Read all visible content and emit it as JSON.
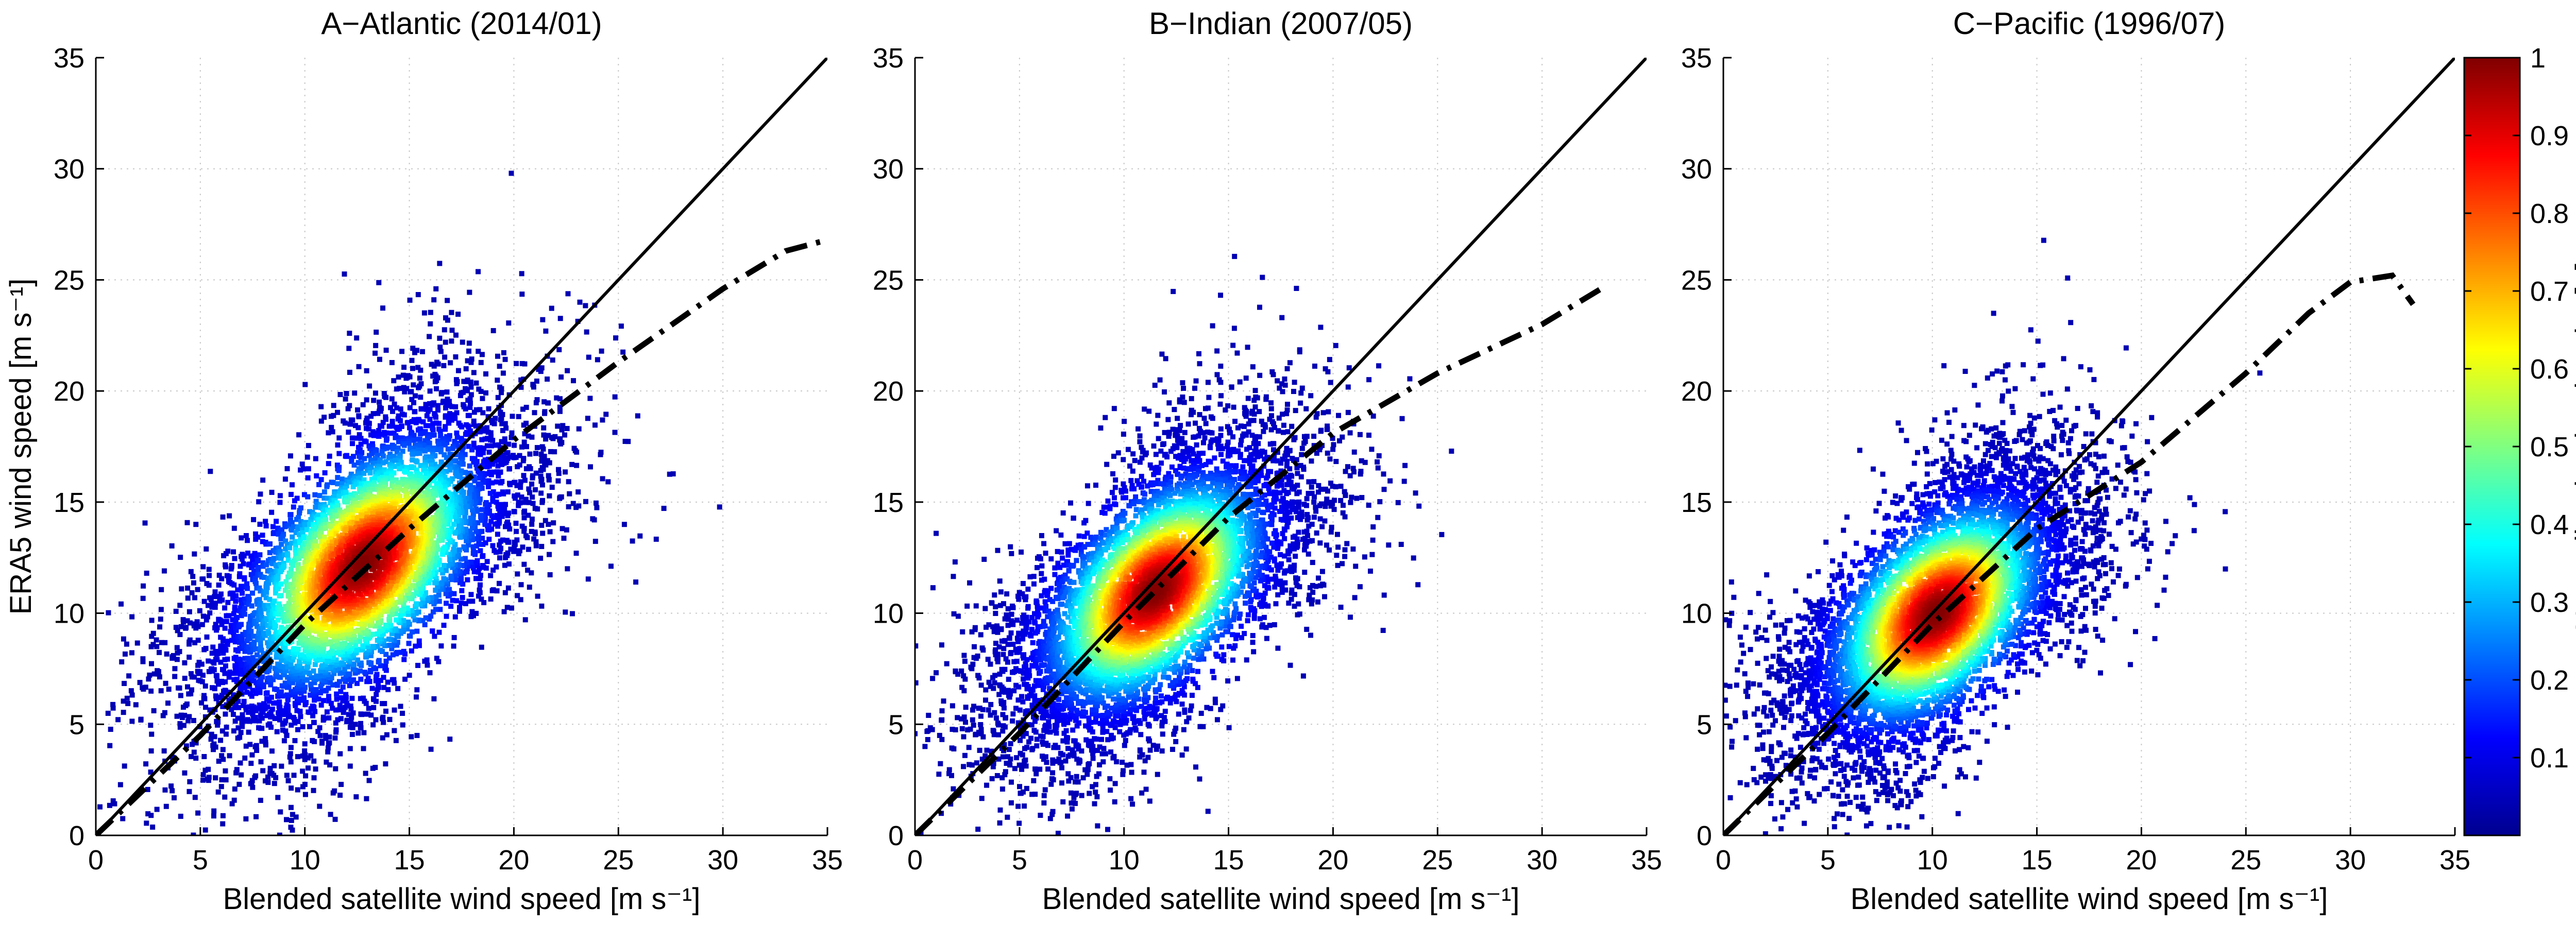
{
  "figure": {
    "panels": 3
  },
  "chart_data": [
    {
      "type": "scatter",
      "title": "A−Atlantic (2014/01)",
      "xlabel": "Blended satellite wind speed [m s⁻¹]",
      "ylabel": "ERA5 wind speed [m s⁻¹]",
      "xlim": [
        0,
        35
      ],
      "ylim": [
        0,
        35
      ],
      "xticks": [
        "0",
        "5",
        "10",
        "15",
        "20",
        "25",
        "30",
        "35"
      ],
      "yticks": [
        "0",
        "5",
        "10",
        "15",
        "20",
        "25",
        "30",
        "35"
      ],
      "grid": true,
      "point_cloud": {
        "center": [
          12.8,
          12.2
        ],
        "spread_major": 5.2,
        "spread_minor": 1.9,
        "x_range": [
          0,
          35
        ],
        "y_max": 31
      },
      "series": [
        {
          "name": "",
          "style": "solid",
          "x": [
            0,
            35
          ],
          "y": [
            0,
            35
          ]
        },
        {
          "name": "",
          "style": "dash-dot",
          "x": [
            0,
            5,
            10,
            15,
            20,
            25,
            30,
            33,
            35
          ],
          "y": [
            0,
            4.5,
            9.5,
            13.8,
            17.8,
            21.3,
            24.6,
            26.3,
            26.8
          ]
        }
      ]
    },
    {
      "type": "scatter",
      "title": "B−Indian (2007/05)",
      "xlabel": "Blended satellite wind speed [m s⁻¹]",
      "ylabel": "",
      "xlim": [
        0,
        35
      ],
      "ylim": [
        0,
        35
      ],
      "xticks": [
        "0",
        "5",
        "10",
        "15",
        "20",
        "25",
        "30",
        "35"
      ],
      "yticks": [
        "0",
        "5",
        "10",
        "15",
        "20",
        "25",
        "30",
        "35"
      ],
      "grid": true,
      "point_cloud": {
        "center": [
          11.5,
          11.0
        ],
        "spread_major": 4.8,
        "spread_minor": 1.8,
        "x_range": [
          0,
          34
        ],
        "y_max": 27
      },
      "series": [
        {
          "name": "",
          "style": "solid",
          "x": [
            0,
            35
          ],
          "y": [
            0,
            35
          ]
        },
        {
          "name": "",
          "style": "dash-dot",
          "x": [
            0,
            5,
            10,
            15,
            20,
            25,
            30,
            33
          ],
          "y": [
            0,
            4.6,
            9.6,
            14.3,
            18.1,
            20.8,
            23.0,
            24.7
          ]
        }
      ]
    },
    {
      "type": "scatter",
      "title": "C−Pacific (1996/07)",
      "xlabel": "Blended satellite wind speed [m s⁻¹]",
      "ylabel": "",
      "xlim": [
        0,
        35
      ],
      "ylim": [
        0,
        35
      ],
      "xticks": [
        "0",
        "5",
        "10",
        "15",
        "20",
        "25",
        "30",
        "35"
      ],
      "yticks": [
        "0",
        "5",
        "10",
        "15",
        "20",
        "25",
        "30",
        "35"
      ],
      "grid": true,
      "point_cloud": {
        "center": [
          10.2,
          10.0
        ],
        "spread_major": 4.6,
        "spread_minor": 1.8,
        "x_range": [
          0,
          32
        ],
        "y_max": 27
      },
      "series": [
        {
          "name": "",
          "style": "solid",
          "x": [
            0,
            35
          ],
          "y": [
            0,
            35
          ]
        },
        {
          "name": "",
          "style": "dash-dot",
          "x": [
            0,
            5,
            10,
            15,
            20,
            25,
            28,
            30,
            32,
            33
          ],
          "y": [
            0,
            4.6,
            9.5,
            13.8,
            16.8,
            20.8,
            23.5,
            24.9,
            25.2,
            23.9
          ]
        }
      ]
    }
  ],
  "colorbar": {
    "label": "Normalized point density [−]",
    "range": [
      0,
      1
    ],
    "ticks": [
      "0.1",
      "0.2",
      "0.3",
      "0.4",
      "0.5",
      "0.6",
      "0.7",
      "0.8",
      "0.9",
      "1"
    ],
    "colormap": [
      "#00008f",
      "#0000ff",
      "#0080ff",
      "#00ffff",
      "#80ff80",
      "#ffff00",
      "#ff8000",
      "#ff0000",
      "#800000"
    ]
  }
}
